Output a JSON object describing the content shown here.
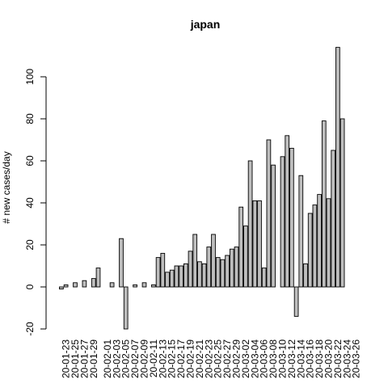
{
  "chart_data": {
    "type": "bar",
    "title": "japan",
    "xlabel": "",
    "ylabel": "# new cases/day",
    "ylim": [
      -20,
      114
    ],
    "yticks": [
      -20,
      0,
      20,
      40,
      60,
      80,
      100
    ],
    "categories": [
      "20-01-22",
      "20-01-23",
      "20-01-24",
      "20-01-25",
      "20-01-26",
      "20-01-27",
      "20-01-28",
      "20-01-29",
      "20-01-30",
      "20-01-31",
      "20-02-01",
      "20-02-02",
      "20-02-03",
      "20-02-04",
      "20-02-05",
      "20-02-06",
      "20-02-07",
      "20-02-08",
      "20-02-09",
      "20-02-10",
      "20-02-11",
      "20-02-12",
      "20-02-13",
      "20-02-14",
      "20-02-15",
      "20-02-16",
      "20-02-17",
      "20-02-18",
      "20-02-19",
      "20-02-20",
      "20-02-21",
      "20-02-22",
      "20-02-23",
      "20-02-24",
      "20-02-25",
      "20-02-26",
      "20-02-27",
      "20-02-28",
      "20-02-29",
      "20-03-01",
      "20-03-02",
      "20-03-03",
      "20-03-04",
      "20-03-05",
      "20-03-06",
      "20-03-07",
      "20-03-08",
      "20-03-09",
      "20-03-10",
      "20-03-11",
      "20-03-12",
      "20-03-13",
      "20-03-14",
      "20-03-15",
      "20-03-16",
      "20-03-17",
      "20-03-18",
      "20-03-19",
      "20-03-20",
      "20-03-21",
      "20-03-22",
      "20-03-23",
      "20-03-24",
      "20-03-25",
      "20-03-26"
    ],
    "tick_labels": [
      "20-01-23",
      "20-01-25",
      "20-01-27",
      "20-01-29",
      "20-02-01",
      "20-02-03",
      "20-02-05",
      "20-02-07",
      "20-02-09",
      "20-02-11",
      "20-02-13",
      "20-02-15",
      "20-02-17",
      "20-02-19",
      "20-02-21",
      "20-02-23",
      "20-02-25",
      "20-02-27",
      "20-02-29",
      "20-03-02",
      "20-03-04",
      "20-03-06",
      "20-03-08",
      "20-03-10",
      "20-03-12",
      "20-03-14",
      "20-03-16",
      "20-03-18",
      "20-03-20",
      "20-03-22",
      "20-03-24",
      "20-03-26"
    ],
    "values": [
      -1,
      1,
      0,
      2,
      0,
      3,
      0,
      4,
      9,
      0,
      0,
      2,
      0,
      23,
      -20,
      0,
      1,
      0,
      2,
      0,
      1,
      14,
      16,
      7,
      8,
      10,
      10,
      11,
      17,
      25,
      12,
      11,
      19,
      25,
      14,
      13,
      15,
      18,
      19,
      38,
      29,
      60,
      41,
      41,
      9,
      70,
      58,
      0,
      62,
      72,
      66,
      -14,
      53,
      11,
      35,
      39,
      44,
      79,
      42,
      65,
      114,
      80,
      0,
      0,
      0
    ],
    "grid": false,
    "legend": "none"
  }
}
